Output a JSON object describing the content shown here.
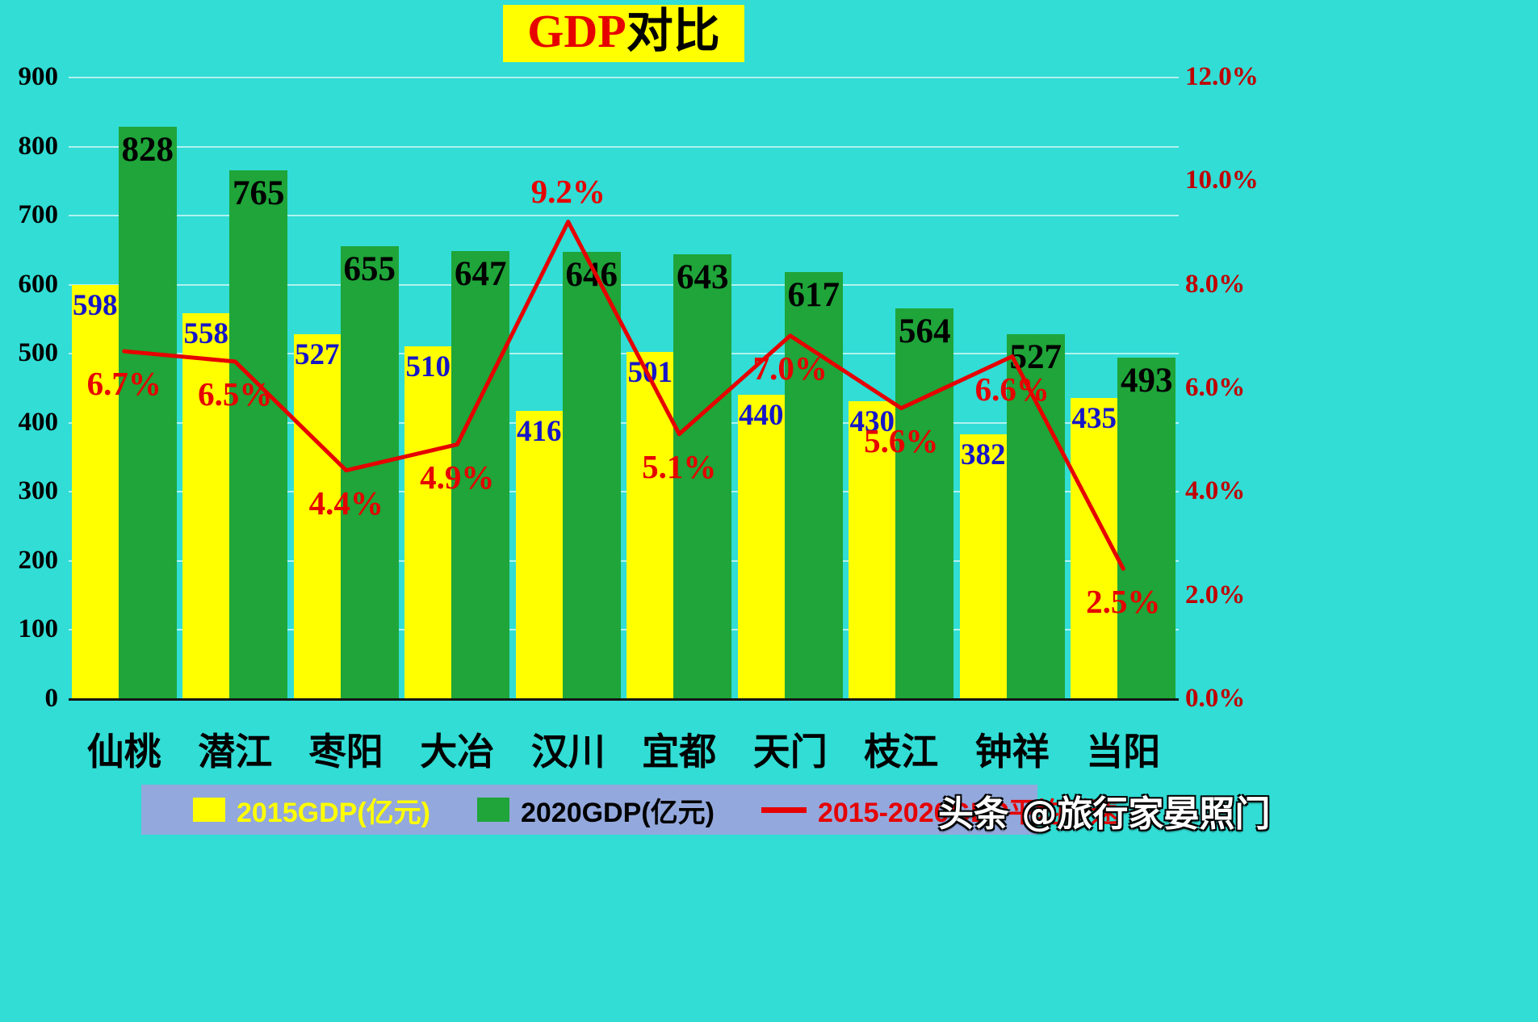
{
  "title": {
    "gdp": "GDP",
    "rest": "对比"
  },
  "watermark": {
    "text": "头条 @旅行家晏照门"
  },
  "legend": {
    "items": [
      {
        "label": "2015GDP(亿元)",
        "color": "#ffff00",
        "type": "square"
      },
      {
        "label": "2020GDP(亿元)",
        "color": "#1fa539",
        "type": "square"
      },
      {
        "label": "2015-2020GDP平均增速",
        "color": "#e60000",
        "type": "line"
      }
    ]
  },
  "chart_data": {
    "type": "combo",
    "title": "GDP对比",
    "categories": [
      "仙桃",
      "潜江",
      "枣阳",
      "大冶",
      "汉川",
      "宜都",
      "天门",
      "枝江",
      "钟祥",
      "当阳"
    ],
    "series": [
      {
        "name": "2015GDP(亿元)",
        "type": "bar",
        "color": "#ffff00",
        "values": [
          598,
          558,
          527,
          510,
          416,
          501,
          440,
          430,
          382,
          435
        ]
      },
      {
        "name": "2020GDP(亿元)",
        "type": "bar",
        "color": "#1fa539",
        "values": [
          828,
          765,
          655,
          647,
          646,
          643,
          617,
          564,
          527,
          493
        ]
      },
      {
        "name": "2015-2020GDP平均增速",
        "type": "line",
        "color": "#e60000",
        "values_pct": [
          6.7,
          6.5,
          4.4,
          4.9,
          9.2,
          5.1,
          7.0,
          5.6,
          6.6,
          2.5
        ],
        "labels": [
          "6.7%",
          "6.5%",
          "4.4%",
          "4.9%",
          "9.2%",
          "5.1%",
          "7.0%",
          "5.6%",
          "6.6%",
          "2.5%"
        ]
      }
    ],
    "left_axis": {
      "min": 0,
      "max": 900,
      "step": 100,
      "ticks": [
        "900",
        "800",
        "700",
        "600",
        "500",
        "400",
        "300",
        "200",
        "100",
        "0"
      ]
    },
    "right_axis": {
      "min": 0,
      "max": 12,
      "step": 2,
      "ticks": [
        "12.0%",
        "10.0%",
        "8.0%",
        "6.0%",
        "4.0%",
        "2.0%",
        "0.0%"
      ]
    },
    "grid": true,
    "legend_position": "bottom"
  }
}
